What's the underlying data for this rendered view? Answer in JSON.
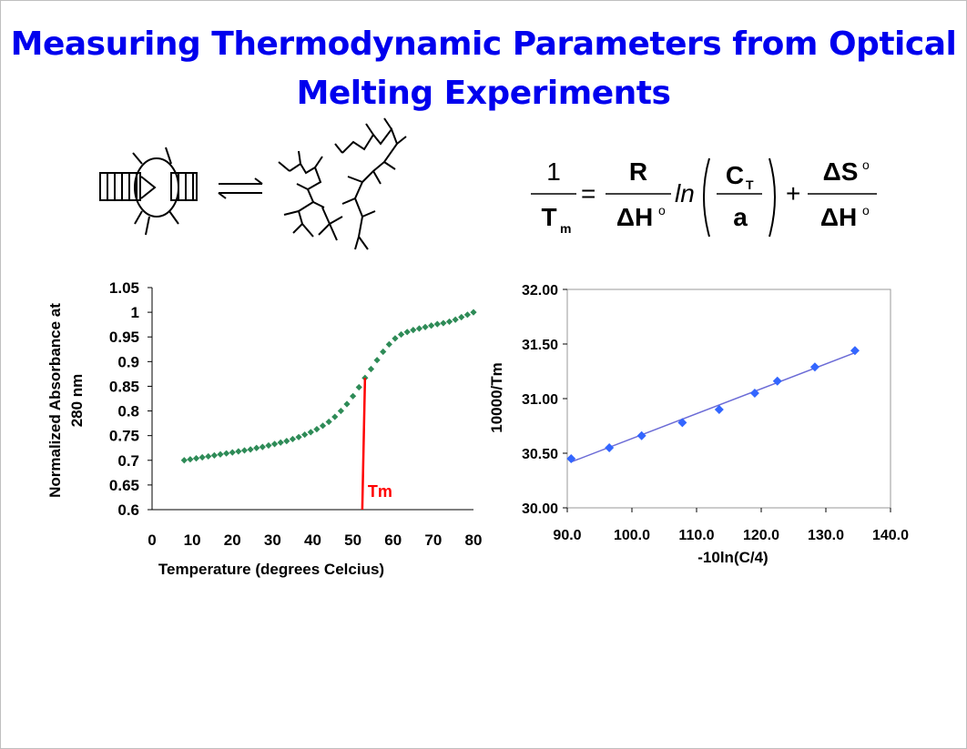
{
  "slide": {
    "title_line1": "Measuring Thermodynamic Parameters from Optical",
    "title_line2": "Melting Experiments"
  },
  "equation": {
    "lhs_num": "1",
    "lhs_den_main": "T",
    "lhs_den_sub": "m",
    "f1_num": "R",
    "f1_den": "ΔH",
    "f1_den_sup": "o",
    "ln": "ln",
    "f2_num_main": "C",
    "f2_num_sub": "T",
    "f2_den": "a",
    "f3_num": "ΔS",
    "f3_num_sup": "o",
    "f3_den": "ΔH",
    "f3_den_sup": "o",
    "equals": "=",
    "plus": "+"
  },
  "chart_data": [
    {
      "type": "scatter",
      "title": "",
      "xlabel": "Temperature (degrees Celcius)",
      "ylabel_line1": "Normalized Absorbance at",
      "ylabel_line2": "280 nm",
      "xlim": [
        0,
        80
      ],
      "ylim": [
        0.6,
        1.05
      ],
      "x_ticks": [
        "0",
        "10",
        "20",
        "30",
        "40",
        "50",
        "60",
        "70",
        "80"
      ],
      "y_ticks": [
        "0.6",
        "0.65",
        "0.7",
        "0.75",
        "0.8",
        "0.85",
        "0.9",
        "0.95",
        "1",
        "1.05"
      ],
      "marker_color": "#2e8b57",
      "annotation": {
        "label": "Tm",
        "x": 53,
        "y_bottom": 0.6,
        "y_top": 0.867,
        "color": "#ff0000"
      },
      "x": [
        8,
        9.5,
        11,
        12.5,
        14,
        15.5,
        17,
        18.5,
        20,
        21.5,
        23,
        24.5,
        26,
        27.5,
        29,
        30.5,
        32,
        33.5,
        35,
        36.5,
        38,
        39.5,
        41,
        42.5,
        44,
        45.5,
        47,
        48.5,
        50,
        51.5,
        53,
        54.5,
        56,
        57.5,
        59,
        60.5,
        62,
        63.5,
        65,
        66.5,
        68,
        69.5,
        71,
        72.5,
        74,
        75.5,
        77,
        78.5,
        80
      ],
      "y": [
        0.7,
        0.702,
        0.704,
        0.706,
        0.708,
        0.71,
        0.712,
        0.714,
        0.716,
        0.718,
        0.72,
        0.722,
        0.725,
        0.727,
        0.73,
        0.733,
        0.736,
        0.739,
        0.743,
        0.747,
        0.752,
        0.757,
        0.763,
        0.77,
        0.778,
        0.788,
        0.8,
        0.814,
        0.83,
        0.848,
        0.867,
        0.885,
        0.903,
        0.92,
        0.935,
        0.947,
        0.955,
        0.96,
        0.964,
        0.967,
        0.97,
        0.973,
        0.976,
        0.978,
        0.981,
        0.985,
        0.99,
        0.995,
        1.0
      ]
    },
    {
      "type": "scatter",
      "title": "",
      "xlabel": "-10ln(C/4)",
      "ylabel": "10000/Tm",
      "xlim": [
        90,
        140
      ],
      "ylim": [
        30,
        32
      ],
      "x_ticks": [
        "90.0",
        "100.0",
        "110.0",
        "120.0",
        "130.0",
        "140.0"
      ],
      "y_ticks": [
        "30.00",
        "30.50",
        "31.00",
        "31.50",
        "32.00"
      ],
      "marker_color": "#3366ff",
      "line_color": "#6b6bd6",
      "x": [
        90.6,
        96.5,
        101.5,
        107.8,
        113.5,
        119.0,
        122.5,
        128.3,
        134.5
      ],
      "y": [
        30.45,
        30.55,
        30.66,
        30.78,
        30.9,
        31.05,
        31.16,
        31.29,
        31.44
      ],
      "fit": {
        "x": [
          90.6,
          134.5
        ],
        "y": [
          30.42,
          31.42
        ]
      }
    }
  ]
}
